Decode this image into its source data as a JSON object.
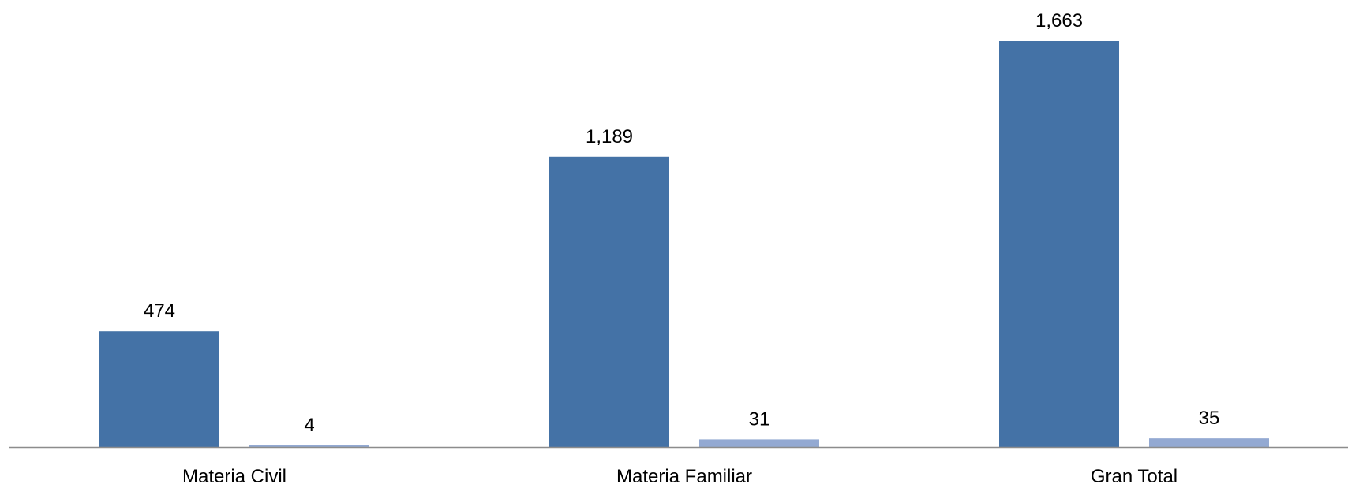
{
  "chart_data": {
    "type": "bar",
    "categories": [
      "Materia Civil",
      "Materia Familiar",
      "Gran Total"
    ],
    "series": [
      {
        "values": [
          474,
          1189,
          1663
        ],
        "color": "#4472a6"
      },
      {
        "values": [
          4,
          31,
          35
        ],
        "color": "#93a9d2"
      }
    ],
    "data_labels": [
      [
        "474",
        "1,189",
        "1,663"
      ],
      [
        "4",
        "31",
        "35"
      ]
    ],
    "ylim": [
      0,
      1663
    ],
    "grid": false,
    "axis_color": "#8c8c8c"
  }
}
